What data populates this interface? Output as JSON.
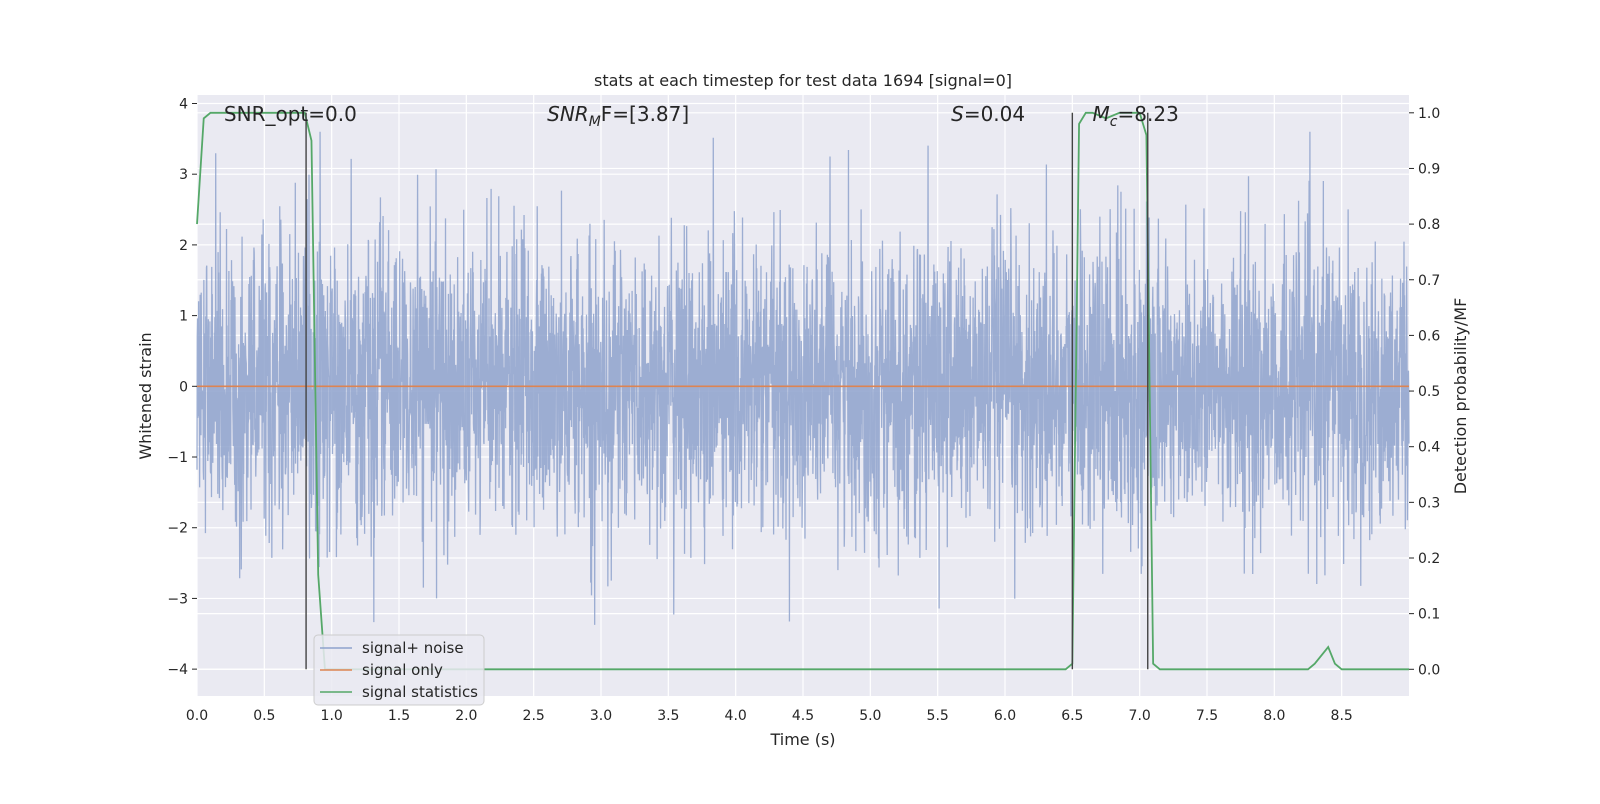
{
  "chart_data": {
    "type": "line",
    "title": "stats at each timestep for test data 1694 [signal=0]",
    "xlabel": "Time (s)",
    "ylabel": "Whitened strain",
    "y2label": "Detection probability/MF",
    "xlim": [
      0.0,
      9.0
    ],
    "ylim": [
      -4.38,
      4.12
    ],
    "y2lim": [
      -0.048,
      1.032
    ],
    "grid": true,
    "legend_position": "lower-left",
    "x_ticks": [
      "0.0",
      "0.5",
      "1.0",
      "1.5",
      "2.0",
      "2.5",
      "3.0",
      "3.5",
      "4.0",
      "4.5",
      "5.0",
      "5.5",
      "6.0",
      "6.5",
      "7.0",
      "7.5",
      "8.0",
      "8.5"
    ],
    "y_ticks": [
      "4",
      "3",
      "2",
      "1",
      "0",
      "−1",
      "−2",
      "−3",
      "−4"
    ],
    "y2_ticks": [
      "1.0",
      "0.9",
      "0.8",
      "0.7",
      "0.6",
      "0.5",
      "0.4",
      "0.3",
      "0.2",
      "0.1",
      "0.0"
    ],
    "annotations": [
      {
        "id": "snr_opt",
        "text": "SNR_opt=0.0",
        "x": 0.2
      },
      {
        "id": "snr_mf",
        "prefix": "SNR",
        "sub": "M",
        "suffix": "F=[3.87]",
        "x": 2.6
      },
      {
        "id": "s",
        "italic": "S",
        "suffix": "=0.04",
        "x": 5.6
      },
      {
        "id": "mc",
        "italic": "M",
        "sub": "c",
        "suffix": "=8.23",
        "x": 6.65
      }
    ],
    "vertical_lines_x": [
      0.81,
      6.5,
      7.06
    ],
    "series": [
      {
        "name": "signal+ noise",
        "color": "#8ea2cc",
        "style": "dense noise trace, approx. standard normal, peaks near +3.6 / -4.0",
        "noise_envelope": {
          "typical": [
            -1.7,
            1.6
          ],
          "max": 3.6,
          "min": -4.0
        }
      },
      {
        "name": "signal only",
        "color": "#dd8452",
        "x": [
          0.0,
          9.0
        ],
        "y": [
          0.0,
          0.0
        ]
      },
      {
        "name": "signal statistics",
        "color": "#55a868",
        "axis": "right",
        "x": [
          0.0,
          0.05,
          0.1,
          0.2,
          0.3,
          0.4,
          0.5,
          0.6,
          0.7,
          0.8,
          0.85,
          0.9,
          0.95,
          1.0,
          1.5,
          2.0,
          2.5,
          3.0,
          3.5,
          4.0,
          4.5,
          5.0,
          5.5,
          6.0,
          6.45,
          6.5,
          6.55,
          6.6,
          6.65,
          6.75,
          6.85,
          6.95,
          7.0,
          7.05,
          7.1,
          7.15,
          7.5,
          8.0,
          8.25,
          8.3,
          8.4,
          8.45,
          8.5,
          9.0
        ],
        "y": [
          0.8,
          0.99,
          1.0,
          1.0,
          1.0,
          1.0,
          1.0,
          1.0,
          1.0,
          1.0,
          0.95,
          0.17,
          0.0,
          0.0,
          0.0,
          0.0,
          0.0,
          0.0,
          0.0,
          0.0,
          0.0,
          0.0,
          0.0,
          0.0,
          0.0,
          0.01,
          0.98,
          1.0,
          1.0,
          0.99,
          1.0,
          1.0,
          1.0,
          0.96,
          0.01,
          0.0,
          0.0,
          0.0,
          0.0,
          0.01,
          0.04,
          0.01,
          0.0,
          0.0
        ]
      }
    ]
  }
}
